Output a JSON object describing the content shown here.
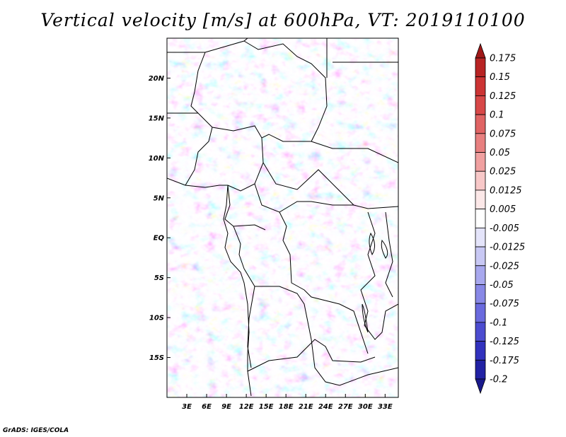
{
  "title": "Vertical velocity [m/s] at 600hPa, VT: 2019110100",
  "footer": "GrADS: IGES/COLA",
  "map": {
    "lon_range": [
      0,
      35
    ],
    "lat_range": [
      -20,
      25
    ],
    "lat_labels": [
      "20N",
      "15N",
      "10N",
      "5N",
      "EQ",
      "5S",
      "10S",
      "15S"
    ],
    "lat_values": [
      20,
      15,
      10,
      5,
      0,
      -5,
      -10,
      -15
    ],
    "lon_labels": [
      "3E",
      "6E",
      "9E",
      "12E",
      "15E",
      "18E",
      "21E",
      "24E",
      "27E",
      "30E",
      "33E"
    ],
    "lon_values": [
      3,
      6,
      9,
      12,
      15,
      18,
      21,
      24,
      27,
      30,
      33
    ]
  },
  "colorbar": {
    "labels": [
      "0.175",
      "0.15",
      "0.125",
      "0.1",
      "0.075",
      "0.05",
      "0.025",
      "0.0125",
      "0.005",
      "-0.005",
      "-0.0125",
      "-0.025",
      "-0.05",
      "-0.075",
      "-0.1",
      "-0.125",
      "-0.175",
      "-0.2"
    ],
    "colors": [
      "#a01818",
      "#b82424",
      "#cc3434",
      "#d84848",
      "#e06464",
      "#e88080",
      "#f0a0a0",
      "#f8c8c8",
      "#fce8e8",
      "#ffffff",
      "#e4e4fa",
      "#c8c8f4",
      "#a8a8ee",
      "#8888e6",
      "#6a6ade",
      "#4c4cd0",
      "#3232be",
      "#2222a4",
      "#1a1a8c"
    ]
  }
}
